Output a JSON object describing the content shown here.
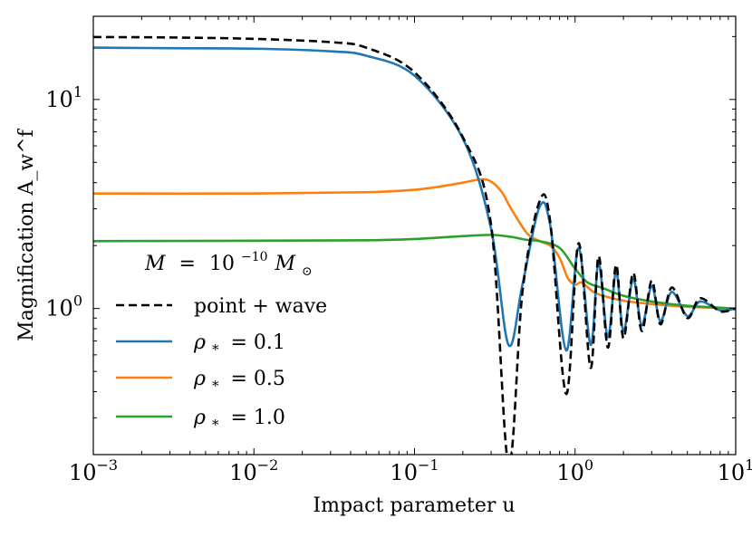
{
  "chart_data": {
    "type": "line",
    "title": "",
    "xscale": "log",
    "yscale": "log",
    "xlim": [
      0.001,
      10
    ],
    "ylim": [
      0.2,
      25
    ],
    "xlabel": "Impact parameter u",
    "ylabel": "Magnification A_w^f",
    "x_ticks": [
      {
        "value": 0.001,
        "base": "10",
        "exp": "−3"
      },
      {
        "value": 0.01,
        "base": "10",
        "exp": "−2"
      },
      {
        "value": 0.1,
        "base": "10",
        "exp": "−1"
      },
      {
        "value": 1,
        "base": "10",
        "exp": "0"
      },
      {
        "value": 10,
        "base": "10",
        "exp": "1"
      }
    ],
    "y_ticks": [
      {
        "value": 1,
        "base": "10",
        "exp": "0"
      },
      {
        "value": 10,
        "base": "10",
        "exp": "1"
      }
    ],
    "legend": {
      "title": "M = 10^−10 M☉",
      "title_parts": {
        "lhs": "M",
        "eq": "=",
        "base": "10",
        "exp": "−10",
        "mass": "M",
        "sun": "⊙"
      },
      "position": "lower-left"
    },
    "series": [
      {
        "name": "point + wave",
        "color": "#000000",
        "dash": true,
        "x": [
          0.001,
          0.003,
          0.01,
          0.03,
          0.05,
          0.1,
          0.2,
          0.3,
          0.385,
          0.47,
          0.6,
          0.7,
          0.88,
          1.05,
          1.25,
          1.4,
          1.6,
          1.8,
          2.0,
          2.3,
          2.6,
          3.0,
          3.4,
          4.0,
          5.0,
          6.0,
          8.0,
          10.0
        ],
        "y": [
          19.9,
          19.8,
          19.5,
          18.8,
          17.7,
          13.5,
          6.6,
          2.5,
          0.18,
          1.2,
          3.25,
          2.6,
          0.39,
          2.05,
          0.52,
          1.78,
          0.65,
          1.62,
          0.72,
          1.48,
          0.78,
          1.36,
          0.84,
          1.26,
          0.9,
          1.12,
          0.97,
          1.0
        ]
      },
      {
        "name": "ρ* = 0.1",
        "label_parts": {
          "sym": "ρ",
          "sub": "*",
          "val": "= 0.1"
        },
        "color": "#1f77b4",
        "dash": false,
        "x": [
          0.001,
          0.003,
          0.01,
          0.03,
          0.05,
          0.1,
          0.2,
          0.3,
          0.385,
          0.47,
          0.6,
          0.7,
          0.88,
          1.05,
          1.25,
          1.4,
          1.6,
          1.8,
          2.0,
          2.3,
          2.6,
          3.0,
          3.4,
          4.0,
          5.0,
          6.0,
          8.0,
          10.0
        ],
        "y": [
          17.7,
          17.6,
          17.5,
          17.0,
          16.2,
          13.0,
          6.5,
          2.4,
          0.67,
          1.3,
          3.05,
          2.5,
          0.63,
          1.95,
          0.67,
          1.65,
          0.73,
          1.5,
          0.78,
          1.38,
          0.83,
          1.28,
          0.87,
          1.2,
          0.92,
          1.08,
          0.98,
          1.0
        ]
      },
      {
        "name": "ρ* = 0.5",
        "label_parts": {
          "sym": "ρ",
          "sub": "*",
          "val": "= 0.5"
        },
        "color": "#ff7f0e",
        "dash": false,
        "x": [
          0.001,
          0.01,
          0.05,
          0.1,
          0.15,
          0.2,
          0.26,
          0.3,
          0.35,
          0.4,
          0.5,
          0.6,
          0.7,
          0.8,
          0.9,
          1.0,
          1.1,
          1.3,
          1.5,
          2.0,
          3.0,
          5.0,
          10.0
        ],
        "y": [
          3.55,
          3.55,
          3.6,
          3.7,
          3.85,
          4.0,
          4.15,
          4.05,
          3.6,
          3.0,
          2.3,
          2.1,
          2.0,
          1.75,
          1.4,
          1.3,
          1.33,
          1.2,
          1.15,
          1.09,
          1.05,
          1.02,
          1.0
        ]
      },
      {
        "name": "ρ* = 1.0",
        "label_parts": {
          "sym": "ρ",
          "sub": "*",
          "val": "= 1.0"
        },
        "color": "#2ca02c",
        "dash": false,
        "x": [
          0.001,
          0.01,
          0.05,
          0.1,
          0.2,
          0.3,
          0.4,
          0.5,
          0.6,
          0.8,
          1.0,
          1.2,
          1.5,
          2.0,
          3.0,
          5.0,
          10.0
        ],
        "y": [
          2.1,
          2.11,
          2.12,
          2.15,
          2.22,
          2.25,
          2.2,
          2.13,
          2.1,
          1.95,
          1.55,
          1.33,
          1.25,
          1.15,
          1.08,
          1.03,
          1.0
        ]
      }
    ]
  }
}
